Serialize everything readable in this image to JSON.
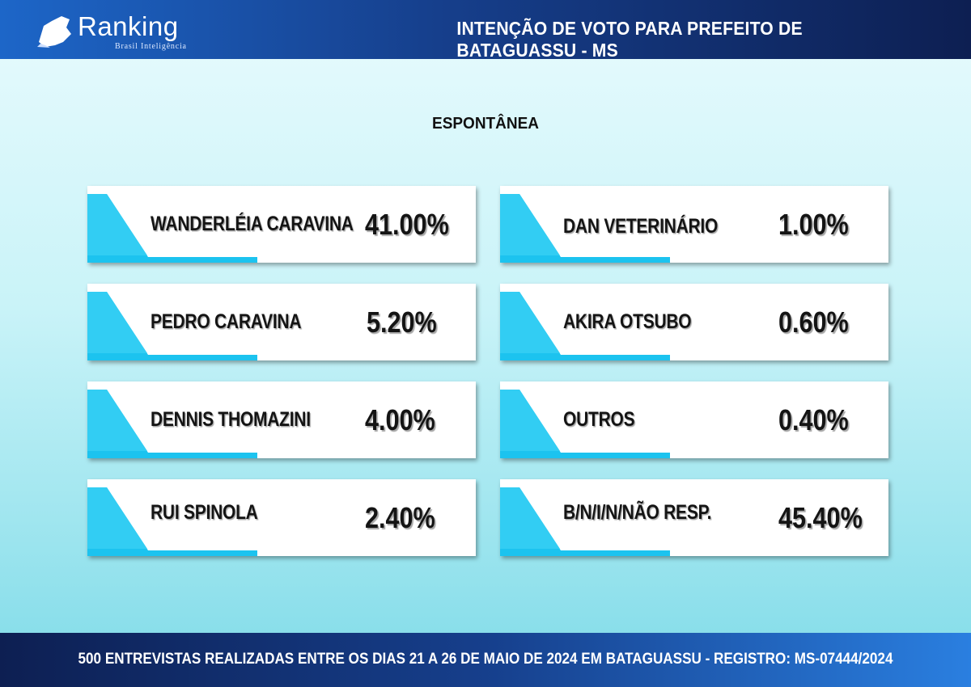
{
  "header": {
    "logo_text": "Ranking",
    "logo_subtext": "Brasil Inteligência",
    "logo_icon": "map-icon",
    "title": "INTENÇÃO DE VOTO PARA PREFEITO DE BATAGUASSU - MS"
  },
  "section_title": "ESPONTÂNEA",
  "candidates": [
    {
      "name": "WANDERLÉIA CARAVINA",
      "value": "41.00%"
    },
    {
      "name": "PEDRO CARAVINA",
      "value": "5.20%"
    },
    {
      "name": "DENNIS THOMAZINI",
      "value": "4.00%"
    },
    {
      "name": "RUI SPINOLA",
      "value": "2.40%"
    },
    {
      "name": "DAN VETERINÁRIO",
      "value": "1.00%"
    },
    {
      "name": "AKIRA OTSUBO",
      "value": "0.60%"
    },
    {
      "name": "OUTROS",
      "value": "0.40%"
    },
    {
      "name": "B/N/I/N/NÃO RESP.",
      "value": "45.40%"
    }
  ],
  "footer": {
    "text": "500 ENTREVISTAS REALIZADAS ENTRE OS DIAS 21 A 26 DE MAIO DE 2024 EM BATAGUASSU - REGISTRO: MS-07444/2024"
  },
  "colors": {
    "accent": "#1cc3ef",
    "header_dark": "#0d1f52",
    "header_light": "#1d66c8"
  }
}
